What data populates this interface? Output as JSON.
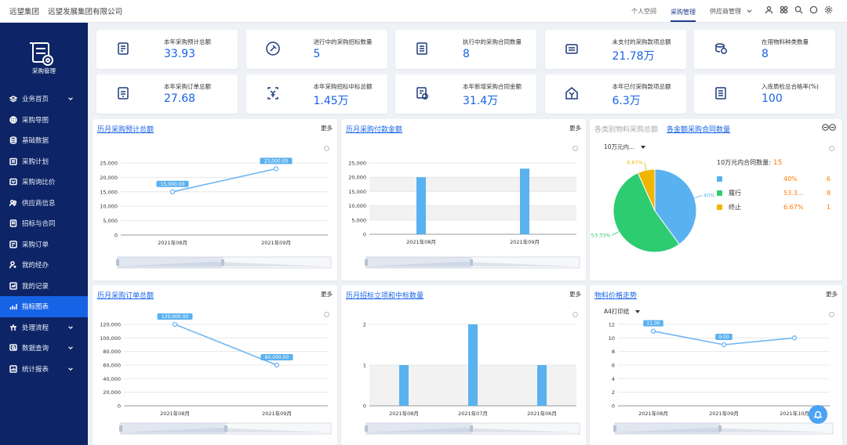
{
  "topbar": {
    "org1": "远望集团",
    "org2": "远望发展集团有限公司",
    "nav": [
      "个人空间",
      "采购管理",
      "供应商管理"
    ]
  },
  "sidebar": {
    "app_name": "采购管理",
    "items": [
      {
        "label": "业务首页",
        "icon": "layers-icon",
        "chevron": true
      },
      {
        "label": "采购导图",
        "icon": "globe-icon"
      },
      {
        "label": "基础数据",
        "icon": "database-icon"
      },
      {
        "label": "采购计划",
        "icon": "calendar-icon"
      },
      {
        "label": "采购询比价",
        "icon": "compare-icon"
      },
      {
        "label": "供应商信息",
        "icon": "users-icon"
      },
      {
        "label": "招标与合同",
        "icon": "document-icon"
      },
      {
        "label": "采购订单",
        "icon": "order-icon"
      },
      {
        "label": "我的经办",
        "icon": "person-icon"
      },
      {
        "label": "我的记录",
        "icon": "record-icon"
      },
      {
        "label": "指标图表",
        "icon": "bar-chart-icon",
        "active": true
      },
      {
        "label": "处理流程",
        "icon": "flow-icon",
        "chevron": true
      },
      {
        "label": "数据查询",
        "icon": "query-icon",
        "chevron": true
      },
      {
        "label": "统计报表",
        "icon": "report-icon",
        "chevron": true
      }
    ]
  },
  "kpis": [
    {
      "label": "本年采购预计总额",
      "value": "33.93"
    },
    {
      "label": "进行中的采购招标数量",
      "value": "5"
    },
    {
      "label": "执行中的采购合同数量",
      "value": "8"
    },
    {
      "label": "未支付的采购款项总额",
      "value": "21.78万"
    },
    {
      "label": "在用物料种类数量",
      "value": "8"
    },
    {
      "label": "本年采购订单总额",
      "value": "27.68"
    },
    {
      "label": "本年采购招标中标总额",
      "value": "1.45万"
    },
    {
      "label": "本年新增采购合同金额",
      "value": "31.4万"
    },
    {
      "label": "本年已付采购款项总额",
      "value": "6.3万"
    },
    {
      "label": "入库质检总合格率(%)",
      "value": "100"
    }
  ],
  "panels": {
    "more_label": "更多",
    "p1_title": "历月采购预计总额",
    "p2_title": "历月采购付款金额",
    "p3_title_inactive": "各类别物料采购总额",
    "p3_title": "各金额采购合同数量",
    "p3_dropdown": "10万元内...",
    "p3_legend_title": "10万元内合同数量:",
    "p3_legend_count": "15",
    "p4_title": "历月采购订单总额",
    "p5_title": "历月招标立项和中标数量",
    "p6_title": "物料价格走势",
    "p6_dropdown": "A4打印纸"
  },
  "chart_data": [
    {
      "type": "line",
      "categories": [
        "2021年08月",
        "2021年09月"
      ],
      "values": [
        15000,
        23000
      ],
      "data_labels": [
        "15,000.00",
        "23,000.00"
      ],
      "yticks": [
        "25,000",
        "20,000",
        "15,000",
        "10,000",
        "5,000",
        "0"
      ],
      "ylim": [
        0,
        25000
      ]
    },
    {
      "type": "bar",
      "categories": [
        "2021年08月",
        "2021年09月"
      ],
      "values": [
        20000,
        23000
      ],
      "yticks": [
        "25,000",
        "20,000",
        "15,000",
        "10,000",
        "5,000",
        "0"
      ],
      "ylim": [
        0,
        25000
      ]
    },
    {
      "type": "pie",
      "slices": [
        {
          "name": "",
          "percent": "40%",
          "count": "6",
          "value": 40,
          "color": "#5ab1ef"
        },
        {
          "name": "履行",
          "percent": "53.3...",
          "count": "8",
          "value": 53.33,
          "color": "#2ecc71"
        },
        {
          "name": "终止",
          "percent": "6.67%",
          "count": "1",
          "value": 6.67,
          "color": "#f1b500"
        }
      ],
      "slice_labels": [
        "40%",
        "53.33%",
        "6.67%"
      ]
    },
    {
      "type": "line",
      "categories": [
        "2021年08月",
        "2021年09月"
      ],
      "values": [
        120000,
        60000
      ],
      "data_labels": [
        "120,000.00",
        "60,000.00"
      ],
      "yticks": [
        "120,000",
        "100,000",
        "80,000",
        "60,000",
        "40,000",
        "20,000",
        "0"
      ],
      "ylim": [
        0,
        120000
      ]
    },
    {
      "type": "bar",
      "categories": [
        "2021年08月",
        "2021年07月",
        "2021年06月"
      ],
      "values": [
        1,
        2,
        1
      ],
      "yticks": [
        "2",
        "1",
        "0"
      ],
      "ylim": [
        0,
        2
      ]
    },
    {
      "type": "line",
      "categories": [
        "2021年08月",
        "2021年09月",
        "2021年10月"
      ],
      "values": [
        11,
        9,
        10
      ],
      "data_labels": [
        "11.00",
        "9.00",
        ""
      ],
      "yticks": [
        "12",
        "10",
        "8",
        "6",
        "4",
        "2",
        "0"
      ],
      "ylim": [
        0,
        12
      ]
    }
  ]
}
